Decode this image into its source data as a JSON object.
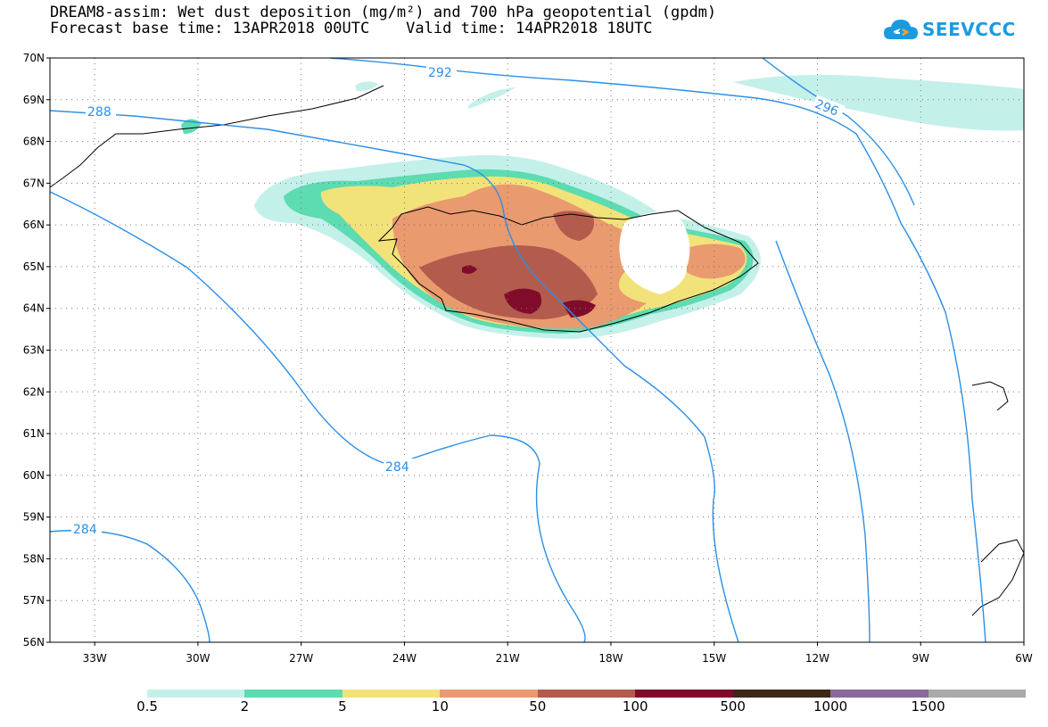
{
  "title": {
    "line1": "DREAM8-assim: Wet dust deposition (mg/m²) and 700 hPa geopotential (gpdm)",
    "line2": "Forecast base time: 13APR2018 00UTC    Valid time: 14APR2018 18UTC"
  },
  "logo": {
    "text": "SEEVCCC"
  },
  "map": {
    "lat_labels": [
      "70N",
      "69N",
      "68N",
      "67N",
      "66N",
      "65N",
      "64N",
      "63N",
      "62N",
      "61N",
      "60N",
      "59N",
      "58N",
      "57N",
      "56N"
    ],
    "lon_labels": [
      "33W",
      "30W",
      "27W",
      "24W",
      "21W",
      "18W",
      "15W",
      "12W",
      "9W",
      "6W"
    ],
    "lat_range": [
      56,
      70
    ],
    "lon_range": [
      -34.3,
      -6
    ],
    "grid": true,
    "contour_labels": [
      "288",
      "292",
      "296",
      "284",
      "284"
    ]
  },
  "legend": {
    "labels": [
      "0.5",
      "2",
      "5",
      "10",
      "50",
      "100",
      "500",
      "1000",
      "1500"
    ],
    "colors": [
      "#c4f0ea",
      "#5ddbb1",
      "#f2e27a",
      "#e99a6f",
      "#b35b4d",
      "#800c2c",
      "#3d2818",
      "#8a6a9b",
      "#a9a9a9"
    ]
  }
}
